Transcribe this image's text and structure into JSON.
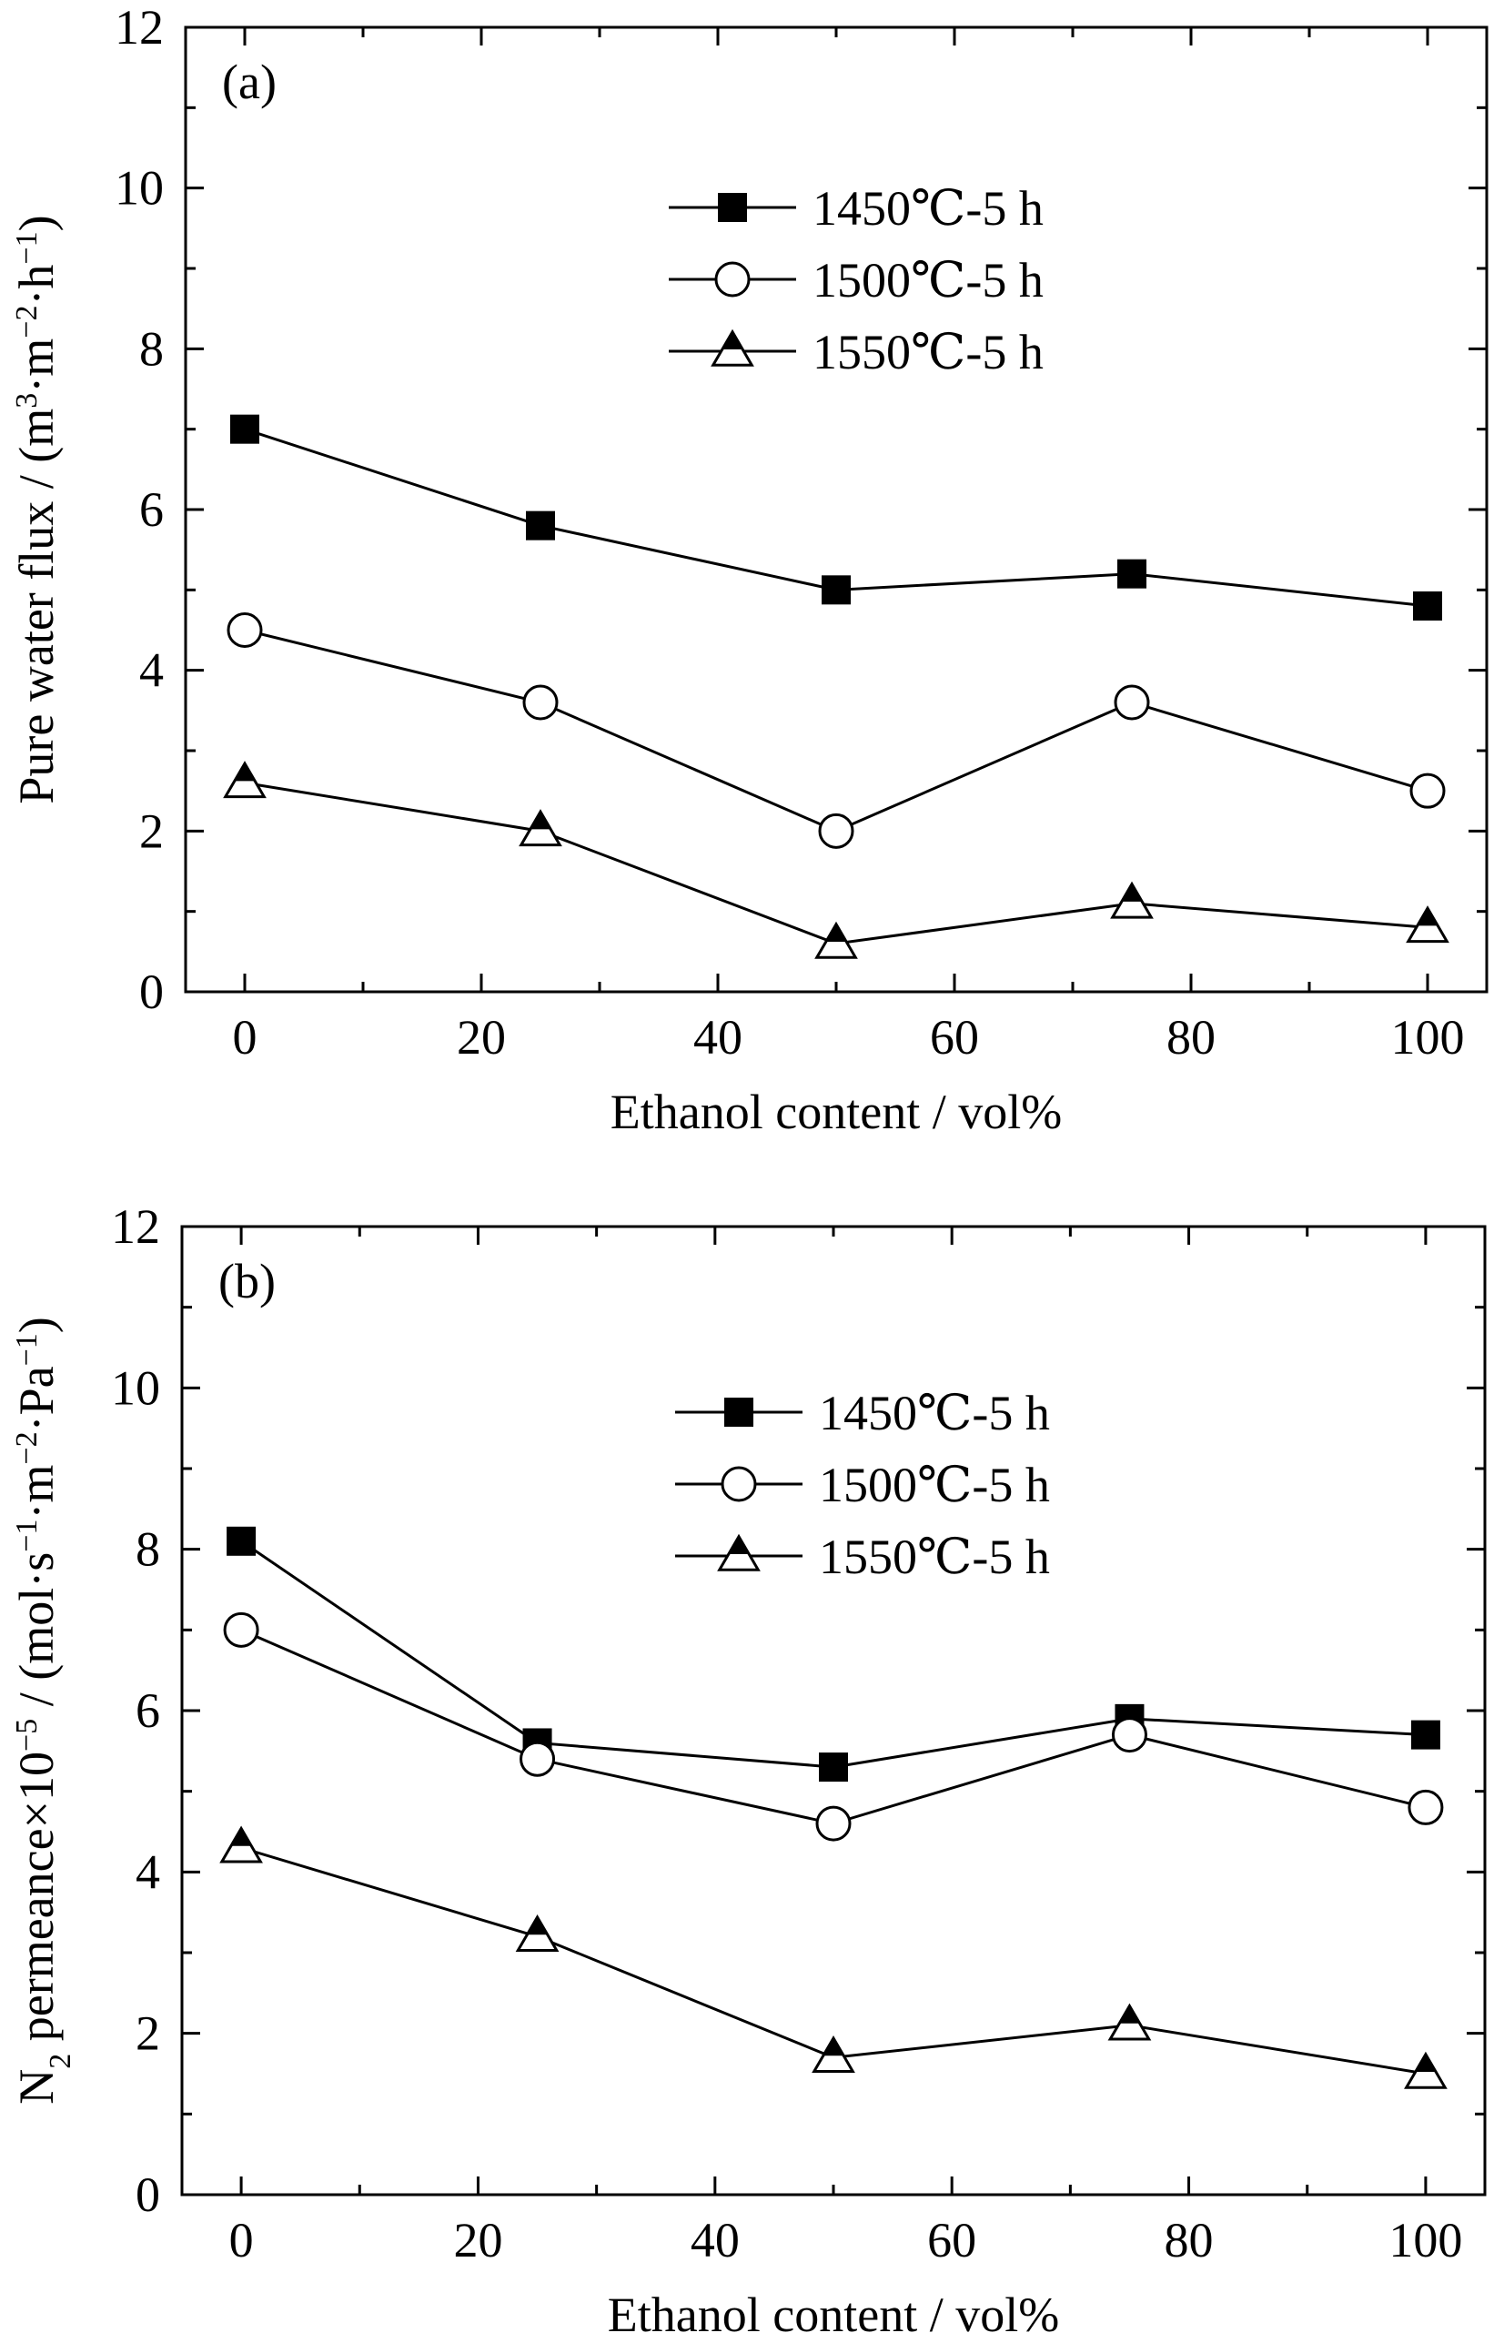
{
  "chart_data": [
    {
      "type": "line",
      "panel_label": "(a)",
      "xlabel": "Ethanol content / vol%",
      "ylabel": "Pure water flux / (m³·m⁻²·h⁻¹)",
      "xlim": [
        -5,
        105
      ],
      "ylim": [
        0,
        12
      ],
      "xticks": [
        0,
        20,
        40,
        60,
        80,
        100
      ],
      "yticks": [
        0,
        2,
        4,
        6,
        8,
        10,
        12
      ],
      "x": [
        0,
        25,
        50,
        75,
        100
      ],
      "legend_position": "top-center",
      "series": [
        {
          "name": "1450℃-5 h",
          "marker": "filled-square",
          "values": [
            7.0,
            5.8,
            5.0,
            5.2,
            4.8
          ]
        },
        {
          "name": "1500℃-5 h",
          "marker": "open-circle",
          "values": [
            4.5,
            3.6,
            2.0,
            3.6,
            2.5
          ]
        },
        {
          "name": "1550℃-5 h",
          "marker": "open-triangle",
          "values": [
            2.6,
            2.0,
            0.6,
            1.1,
            0.8
          ]
        }
      ]
    },
    {
      "type": "line",
      "panel_label": "(b)",
      "xlabel": "Ethanol content / vol%",
      "ylabel": "N₂ permeance×10⁻⁵ / (mol·s⁻¹·m⁻²·Pa⁻¹)",
      "xlim": [
        -5,
        105
      ],
      "ylim": [
        0,
        12
      ],
      "xticks": [
        0,
        20,
        40,
        60,
        80,
        100
      ],
      "yticks": [
        0,
        2,
        4,
        6,
        8,
        10,
        12
      ],
      "x": [
        0,
        25,
        50,
        75,
        100
      ],
      "legend_position": "top-center",
      "series": [
        {
          "name": "1450℃-5 h",
          "marker": "filled-square",
          "values": [
            8.1,
            5.6,
            5.3,
            5.9,
            5.7
          ]
        },
        {
          "name": "1500℃-5 h",
          "marker": "open-circle",
          "values": [
            7.0,
            5.4,
            4.6,
            5.7,
            4.8
          ]
        },
        {
          "name": "1550℃-5 h",
          "marker": "open-triangle",
          "values": [
            4.3,
            3.2,
            1.7,
            2.1,
            1.5
          ]
        }
      ]
    }
  ]
}
